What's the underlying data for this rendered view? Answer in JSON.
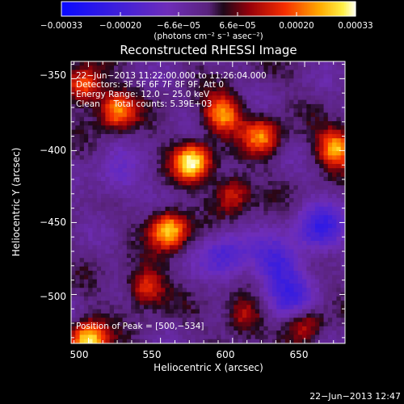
{
  "chart_data": {
    "type": "heatmap",
    "title": "Reconstructed RHESSI Image",
    "xlabel": "Heliocentric X (arcsec)",
    "ylabel": "Heliocentric Y (arcsec)",
    "xlim": [
      488,
      678
    ],
    "ylim": [
      -534,
      -338
    ],
    "x_ticks": [
      "500",
      "550",
      "600",
      "650"
    ],
    "y_ticks": [
      "−350",
      "−400",
      "−450",
      "−500"
    ],
    "colorbar": {
      "range": [
        -0.00033,
        0.00033
      ],
      "tick_labels": [
        "−0.00033",
        "−0.00020",
        "−6.6e−05",
        "6.6e−05",
        "0.00020",
        "0.00033"
      ],
      "unit_text": "(photons cm⁻² s⁻¹ asec⁻²)"
    },
    "annotations": [
      "22−Jun−2013 11:22:00.000 to 11:26:04.000",
      "Detectors: 3F 5F 6F 7F 8F 9F, Att 0",
      "Energy Range: 12.0 − 25.0 keV",
      "Clean     Total counts: 5.39E+03"
    ],
    "peak_label": "Position of Peak = [500,−534]",
    "bright_sources": [
      {
        "x": 572,
        "y": -408,
        "level": 1.0
      },
      {
        "x": 556,
        "y": -455,
        "level": 0.95
      },
      {
        "x": 500,
        "y": -532,
        "level": 1.0
      },
      {
        "x": 672,
        "y": -398,
        "level": 0.85
      },
      {
        "x": 593,
        "y": -375,
        "level": 0.8
      },
      {
        "x": 520,
        "y": -372,
        "level": 0.75
      },
      {
        "x": 497,
        "y": -355,
        "level": 0.7
      },
      {
        "x": 620,
        "y": -390,
        "level": 0.7
      },
      {
        "x": 540,
        "y": -495,
        "level": 0.6
      },
      {
        "x": 600,
        "y": -430,
        "level": 0.55
      },
      {
        "x": 608,
        "y": -515,
        "level": 0.5
      },
      {
        "x": 650,
        "y": -520,
        "level": 0.45
      }
    ],
    "dim_regions": [
      {
        "x": 660,
        "y": -455,
        "level": -0.6
      },
      {
        "x": 630,
        "y": -480,
        "level": -0.5
      },
      {
        "x": 596,
        "y": -472,
        "level": -0.45
      },
      {
        "x": 640,
        "y": -505,
        "level": -0.45
      },
      {
        "x": 520,
        "y": -420,
        "level": -0.3
      }
    ]
  },
  "footer": {
    "timestamp": "22−Jun−2013 12:47"
  }
}
